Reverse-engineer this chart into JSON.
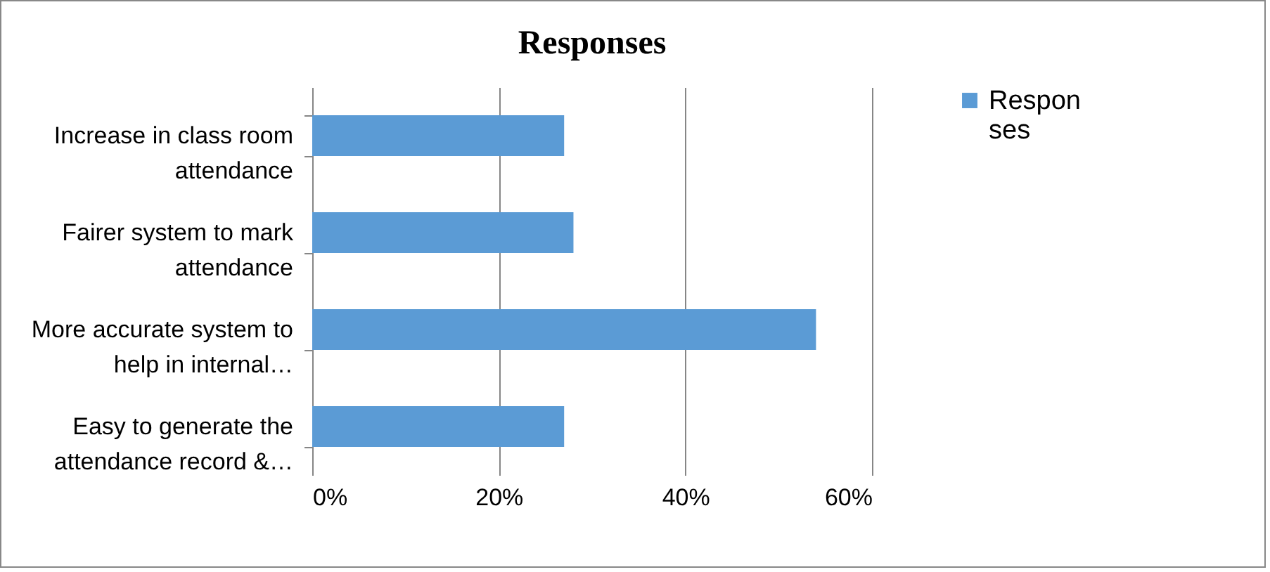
{
  "chart_data": {
    "type": "bar",
    "orientation": "horizontal",
    "title": "Responses",
    "categories": [
      "Increase in class room attendance",
      "Fairer system to mark attendance",
      "More accurate system to help in internal…",
      "Easy to generate the attendance record &…"
    ],
    "series": [
      {
        "name": "Responses",
        "color": "#5b9bd5",
        "values": [
          0.27,
          0.28,
          0.54,
          0.27
        ]
      }
    ],
    "xlim": [
      0,
      0.6
    ],
    "xticks": [
      {
        "value": 0,
        "label": "0%"
      },
      {
        "value": 0.2,
        "label": "20%"
      },
      {
        "value": 0.4,
        "label": "40%"
      },
      {
        "value": 0.6,
        "label": "60%"
      }
    ],
    "grid": "x",
    "legend": "right"
  }
}
